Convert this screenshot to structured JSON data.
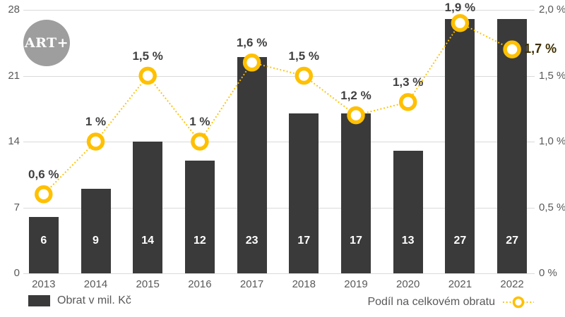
{
  "logo": {
    "label": "ART+"
  },
  "colors": {
    "bar": "#3a3a3a",
    "accent_line": "#FFC000",
    "axis_text": "#595959",
    "point_label_text": "#404040",
    "last_point_label_text": "#3E2F00",
    "gridline": "#dadada",
    "logo_background": "#9e9e9e",
    "bar_value_text": "#ffffff",
    "background": "#ffffff"
  },
  "chart_data": {
    "type": "combo-bar-line",
    "categories": [
      "2013",
      "2014",
      "2015",
      "2016",
      "2017",
      "2018",
      "2019",
      "2020",
      "2021",
      "2022"
    ],
    "series": [
      {
        "name": "Obrat v mil. Kč",
        "type": "bar",
        "axis": "left",
        "values": [
          6,
          9,
          14,
          12,
          23,
          17,
          17,
          13,
          27,
          27
        ],
        "value_labels": [
          "6",
          "9",
          "14",
          "12",
          "23",
          "17",
          "17",
          "13",
          "27",
          "27"
        ]
      },
      {
        "name": "Podíl na celkovém obratu",
        "type": "line",
        "axis": "right",
        "line_style": "dotted",
        "marker": "open-circle",
        "values": [
          0.6,
          1.0,
          1.5,
          1.0,
          1.6,
          1.5,
          1.2,
          1.3,
          1.9,
          1.7
        ],
        "point_labels": [
          "0,6 %",
          "1 %",
          "1,5 %",
          "1 %",
          "1,6 %",
          "1,5 %",
          "1,2 %",
          "1,3 %",
          "1,9 %",
          "1,7 %"
        ],
        "last_label_position": "right"
      }
    ],
    "left_axis": {
      "min": 0,
      "max": 28,
      "tick_values": [
        0,
        7,
        14,
        21,
        28
      ],
      "tick_labels": [
        "0",
        "7",
        "14",
        "21",
        "28"
      ]
    },
    "right_axis": {
      "min": 0,
      "max": 2,
      "tick_values": [
        0,
        0.5,
        1.0,
        1.5,
        2.0
      ],
      "tick_labels": [
        "0 %",
        "0,5 %",
        "1,0 %",
        "1,5 %",
        "2,0 %"
      ]
    },
    "grid": true,
    "legend_position": "bottom"
  },
  "legend": {
    "bar_label": "Obrat v mil. Kč",
    "line_label": "Podíl na celkovém obratu"
  }
}
